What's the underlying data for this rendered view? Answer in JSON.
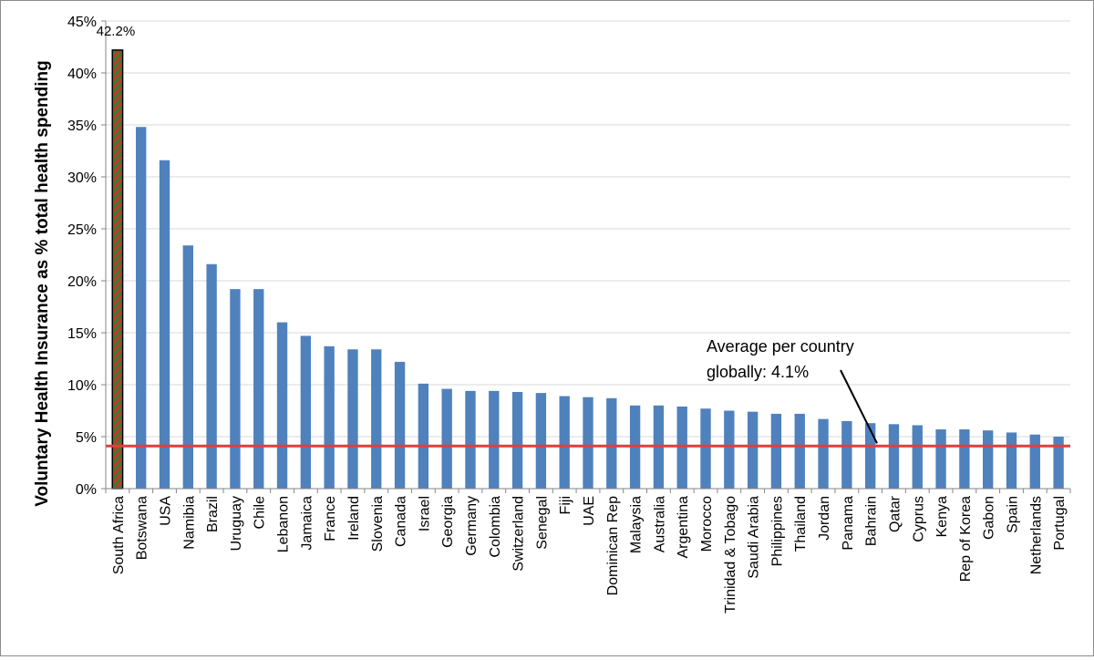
{
  "chart_data": {
    "type": "bar",
    "title": "",
    "xlabel": "",
    "ylabel": "Voluntary Health Insurance as % total health spending",
    "ylim": [
      0,
      45
    ],
    "yticks": [
      "0%",
      "5%",
      "10%",
      "15%",
      "20%",
      "25%",
      "30%",
      "35%",
      "40%",
      "45%"
    ],
    "grid": true,
    "categories": [
      "South Africa",
      "Botswana",
      "USA",
      "Namibia",
      "Brazil",
      "Uruguay",
      "Chile",
      "Lebanon",
      "Jamaica",
      "France",
      "Ireland",
      "Slovenia",
      "Canada",
      "Israel",
      "Georgia",
      "Germany",
      "Colombia",
      "Switzerland",
      "Senegal",
      "Fiji",
      "UAE",
      "Dominican Rep",
      "Malaysia",
      "Australia",
      "Argentina",
      "Morocco",
      "Trinidad & Tobago",
      "Saudi Arabia",
      "Philippines",
      "Thailand",
      "Jordan",
      "Panama",
      "Bahrain",
      "Qatar",
      "Cyprus",
      "Kenya",
      "Rep of Korea",
      "Gabon",
      "Spain",
      "Netherlands",
      "Portugal"
    ],
    "values": [
      42.2,
      34.8,
      31.6,
      23.4,
      21.6,
      19.2,
      19.2,
      16.0,
      14.7,
      13.7,
      13.4,
      13.4,
      12.2,
      10.1,
      9.6,
      9.4,
      9.4,
      9.3,
      9.2,
      8.9,
      8.8,
      8.7,
      8.0,
      8.0,
      7.9,
      7.7,
      7.5,
      7.4,
      7.2,
      7.2,
      6.7,
      6.5,
      6.3,
      6.2,
      6.1,
      5.7,
      5.7,
      5.6,
      5.4,
      5.2,
      5.0
    ],
    "highlight": {
      "index": 0,
      "label": "42.2%",
      "fill": "#c0392b",
      "stripe": "#3a7d2c",
      "outline": "#000000"
    },
    "bar_color": "#4f81bd",
    "reference_line": {
      "value": 4.1,
      "color": "#e0403a",
      "annotation": [
        "Average per country",
        "globally: 4.1%"
      ]
    },
    "colors": {
      "grid": "#d9d9d9",
      "axis": "#868686",
      "text": "#000000"
    }
  }
}
